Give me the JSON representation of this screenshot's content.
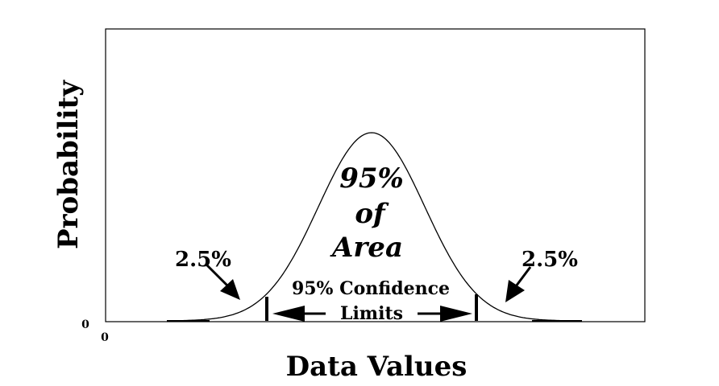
{
  "figure": {
    "ylabel": "Probability",
    "xlabel": "Data Values",
    "y_origin_label": "0",
    "x_origin_label": "0",
    "center_label_line1": "95%",
    "center_label_line2": "of",
    "center_label_line3": "Area",
    "left_tail_label": "2.5%",
    "right_tail_label": "2.5%",
    "confidence_label_line1": "95% Confidence",
    "confidence_label_line2": "Limits"
  },
  "colors": {
    "ink": "#000000",
    "background": "#ffffff"
  }
}
